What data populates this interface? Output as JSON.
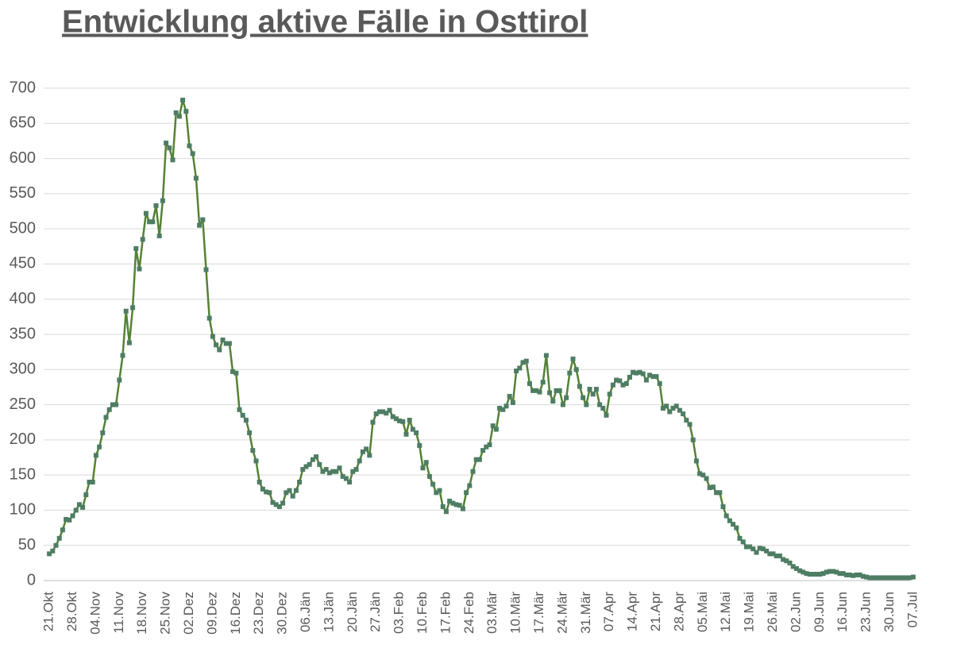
{
  "chart_data": {
    "type": "line",
    "title": "Entwicklung aktive Fälle in Osttirol",
    "categories": [
      "21.Okt",
      null,
      null,
      null,
      null,
      null,
      null,
      "28.Okt",
      null,
      null,
      null,
      null,
      null,
      null,
      "04.Nov",
      null,
      null,
      null,
      null,
      null,
      null,
      "11.Nov",
      null,
      null,
      null,
      null,
      null,
      null,
      "18.Nov",
      null,
      null,
      null,
      null,
      null,
      null,
      "25.Nov",
      null,
      null,
      null,
      null,
      null,
      null,
      "02.Dez",
      null,
      null,
      null,
      null,
      null,
      null,
      "09.Dez",
      null,
      null,
      null,
      null,
      null,
      null,
      "16.Dez",
      null,
      null,
      null,
      null,
      null,
      null,
      "23.Dez",
      null,
      null,
      null,
      null,
      null,
      null,
      "30.Dez",
      null,
      null,
      null,
      null,
      null,
      null,
      "06.Jän",
      null,
      null,
      null,
      null,
      null,
      null,
      "13.Jän",
      null,
      null,
      null,
      null,
      null,
      null,
      "20.Jän",
      null,
      null,
      null,
      null,
      null,
      null,
      "27.Jän",
      null,
      null,
      null,
      null,
      null,
      null,
      "03.Feb",
      null,
      null,
      null,
      null,
      null,
      null,
      "10.Feb",
      null,
      null,
      null,
      null,
      null,
      null,
      "17.Feb",
      null,
      null,
      null,
      null,
      null,
      null,
      "24.Feb",
      null,
      null,
      null,
      null,
      null,
      null,
      "03.Mär",
      null,
      null,
      null,
      null,
      null,
      null,
      "10.Mär",
      null,
      null,
      null,
      null,
      null,
      null,
      "17.Mär",
      null,
      null,
      null,
      null,
      null,
      null,
      "24.Mär",
      null,
      null,
      null,
      null,
      null,
      null,
      "31.Mär",
      null,
      null,
      null,
      null,
      null,
      null,
      "07.Apr",
      null,
      null,
      null,
      null,
      null,
      null,
      "14.Apr",
      null,
      null,
      null,
      null,
      null,
      null,
      "21.Apr",
      null,
      null,
      null,
      null,
      null,
      null,
      "28.Apr",
      null,
      null,
      null,
      null,
      null,
      null,
      "05.Mai",
      null,
      null,
      null,
      null,
      null,
      null,
      "12.Mai",
      null,
      null,
      null,
      null,
      null,
      null,
      "19.Mai",
      null,
      null,
      null,
      null,
      null,
      null,
      "26.Mai",
      null,
      null,
      null,
      null,
      null,
      null,
      "02.Jun",
      null,
      null,
      null,
      null,
      null,
      null,
      "09.Jun",
      null,
      null,
      null,
      null,
      null,
      null,
      "16.Jun",
      null,
      null,
      null,
      null,
      null,
      null,
      "23.Jun",
      null,
      null,
      null,
      null,
      null,
      null,
      "30.Jun",
      null,
      null,
      null,
      null,
      null,
      null,
      "07.Jul"
    ],
    "series": [
      {
        "color": "#548235",
        "marker_color": "#4e7d63",
        "values": [
          38,
          42,
          50,
          60,
          72,
          87,
          86,
          92,
          100,
          108,
          104,
          122,
          140,
          140,
          178,
          190,
          210,
          232,
          243,
          250,
          250,
          285,
          320,
          383,
          338,
          388,
          472,
          443,
          485,
          522,
          510,
          510,
          533,
          490,
          540,
          622,
          615,
          598,
          665,
          660,
          683,
          667,
          618,
          607,
          572,
          505,
          513,
          442,
          373,
          347,
          335,
          328,
          342,
          337,
          337,
          297,
          295,
          243,
          235,
          228,
          210,
          185,
          170,
          140,
          130,
          126,
          125,
          111,
          108,
          105,
          110,
          125,
          128,
          120,
          128,
          140,
          158,
          162,
          165,
          172,
          176,
          165,
          155,
          158,
          153,
          155,
          155,
          160,
          148,
          145,
          140,
          155,
          158,
          170,
          183,
          187,
          178,
          225,
          237,
          240,
          240,
          238,
          242,
          233,
          230,
          227,
          226,
          208,
          228,
          215,
          210,
          192,
          160,
          168,
          148,
          137,
          125,
          128,
          105,
          98,
          113,
          110,
          108,
          107,
          102,
          125,
          135,
          155,
          172,
          172,
          185,
          190,
          193,
          220,
          215,
          245,
          243,
          248,
          262,
          253,
          298,
          302,
          310,
          312,
          280,
          270,
          270,
          268,
          282,
          320,
          267,
          255,
          270,
          270,
          250,
          260,
          295,
          315,
          300,
          276,
          260,
          250,
          272,
          265,
          272,
          250,
          245,
          235,
          265,
          278,
          285,
          284,
          278,
          280,
          289,
          296,
          295,
          296,
          294,
          285,
          292,
          290,
          290,
          280,
          245,
          248,
          240,
          245,
          248,
          242,
          237,
          228,
          222,
          200,
          170,
          152,
          150,
          145,
          132,
          133,
          125,
          125,
          105,
          92,
          85,
          80,
          75,
          60,
          55,
          48,
          48,
          45,
          40,
          46,
          45,
          42,
          38,
          38,
          35,
          35,
          30,
          28,
          25,
          20,
          17,
          14,
          12,
          10,
          9,
          9,
          9,
          9,
          10,
          12,
          13,
          13,
          12,
          10,
          10,
          8,
          8,
          7,
          8,
          8,
          6,
          5,
          4,
          4,
          4,
          4,
          4,
          4,
          4,
          4,
          4,
          4,
          4,
          4,
          4,
          5
        ]
      }
    ],
    "ylim": [
      0,
      700
    ],
    "yticks": [
      0,
      50,
      100,
      150,
      200,
      250,
      300,
      350,
      400,
      450,
      500,
      550,
      600,
      650,
      700
    ],
    "grid": true
  }
}
